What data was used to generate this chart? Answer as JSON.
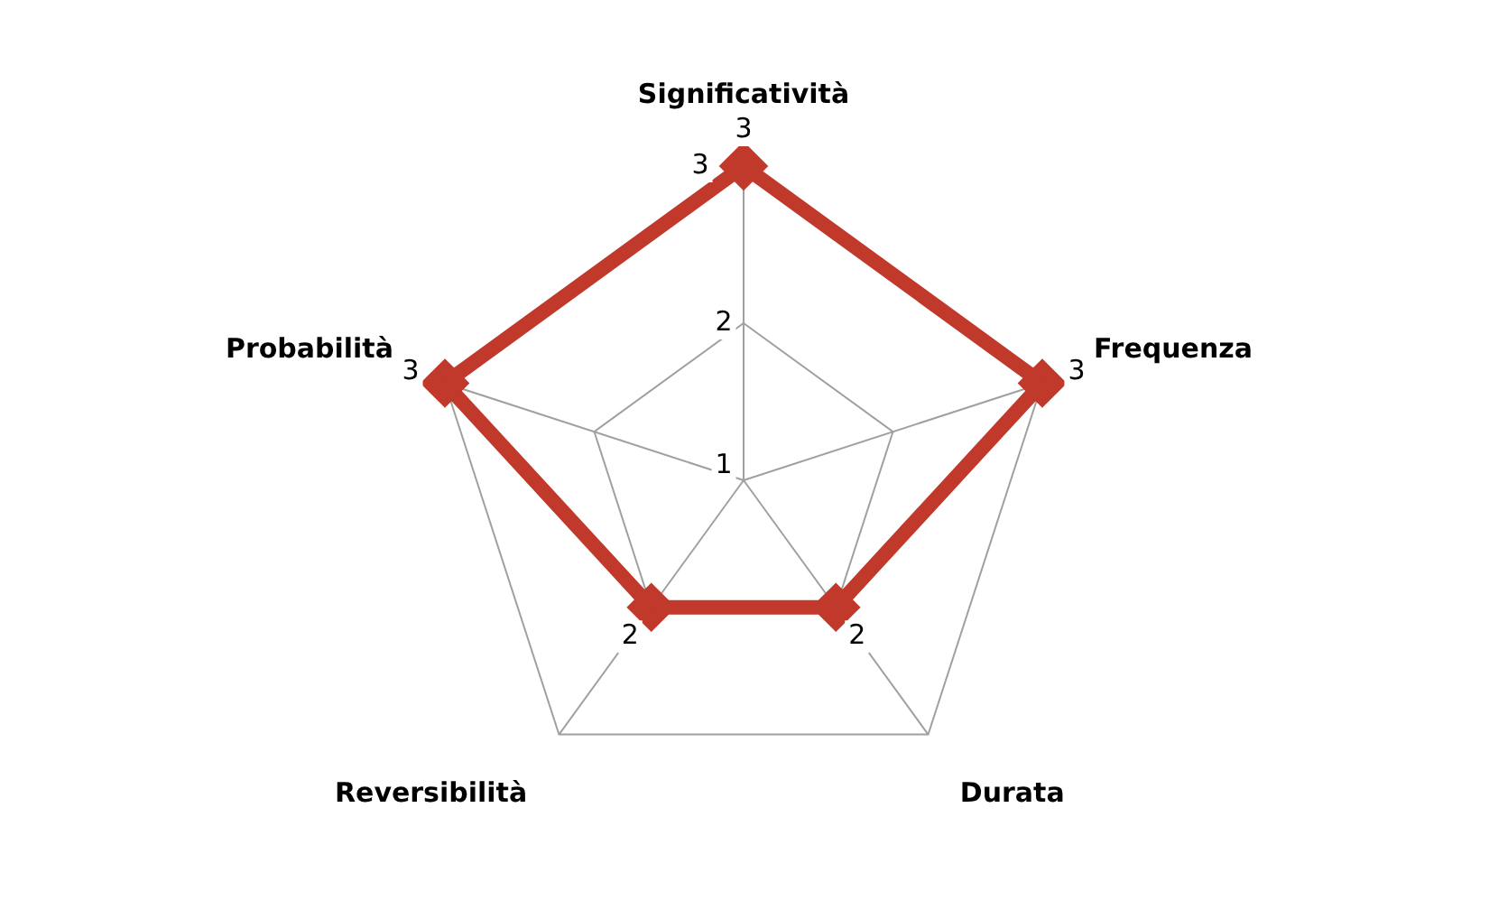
{
  "chart_data": {
    "type": "radar",
    "categories": [
      "Significatività",
      "Frequenza",
      "Durata",
      "Reversibilità",
      "Probabilità"
    ],
    "series": [
      {
        "color": "#c0392b",
        "values": [
          3,
          3,
          2,
          2,
          3
        ]
      }
    ],
    "ylim": [
      1,
      3
    ],
    "yticks": [
      1,
      2,
      3
    ],
    "grid": true,
    "marker": "diamond",
    "data_labels": true
  }
}
